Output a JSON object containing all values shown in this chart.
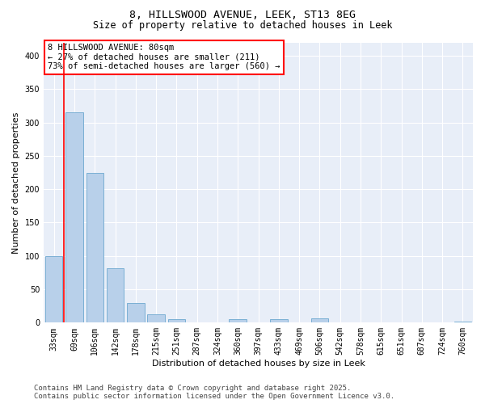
{
  "title_line1": "8, HILLSWOOD AVENUE, LEEK, ST13 8EG",
  "title_line2": "Size of property relative to detached houses in Leek",
  "xlabel": "Distribution of detached houses by size in Leek",
  "ylabel": "Number of detached properties",
  "categories": [
    "33sqm",
    "69sqm",
    "106sqm",
    "142sqm",
    "178sqm",
    "215sqm",
    "251sqm",
    "287sqm",
    "324sqm",
    "360sqm",
    "397sqm",
    "433sqm",
    "469sqm",
    "506sqm",
    "542sqm",
    "578sqm",
    "615sqm",
    "651sqm",
    "687sqm",
    "724sqm",
    "760sqm"
  ],
  "values": [
    100,
    315,
    225,
    82,
    29,
    12,
    5,
    0,
    0,
    5,
    0,
    5,
    0,
    7,
    0,
    0,
    0,
    0,
    0,
    0,
    2
  ],
  "bar_color": "#b8d0ea",
  "bar_edge_color": "#7aafd4",
  "vline_x": 0.5,
  "vline_color": "red",
  "annotation_text": "8 HILLSWOOD AVENUE: 80sqm\n← 27% of detached houses are smaller (211)\n73% of semi-detached houses are larger (560) →",
  "annotation_box_color": "white",
  "annotation_box_edge_color": "red",
  "ylim": [
    0,
    420
  ],
  "yticks": [
    0,
    50,
    100,
    150,
    200,
    250,
    300,
    350,
    400
  ],
  "background_color": "#e8eef8",
  "grid_color": "white",
  "footer_text": "Contains HM Land Registry data © Crown copyright and database right 2025.\nContains public sector information licensed under the Open Government Licence v3.0.",
  "title_fontsize": 9.5,
  "subtitle_fontsize": 8.5,
  "tick_fontsize": 7,
  "label_fontsize": 8,
  "annotation_fontsize": 7.5,
  "footer_fontsize": 6.5
}
